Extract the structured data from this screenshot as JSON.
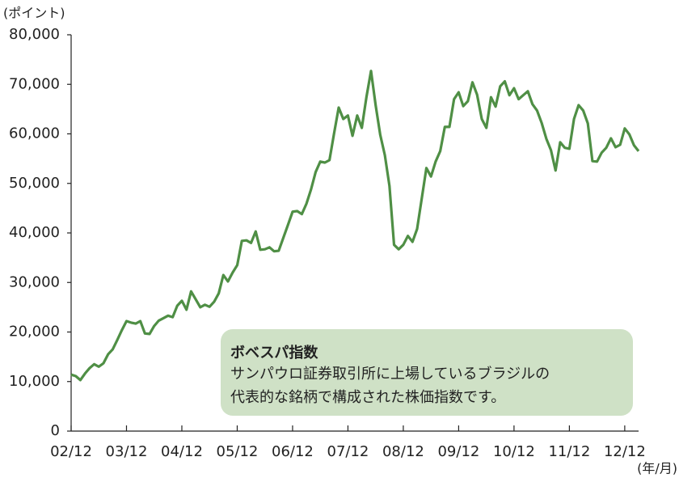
{
  "chart_data": {
    "type": "line",
    "y_unit_label": "(ポイント)",
    "x_unit_label": "(年/月)",
    "annotation": {
      "title": "ボベスパ指数",
      "lines": [
        "サンパウロ証券取引所に上場しているブラジルの",
        "代表的な銘柄で構成された株価指数です。"
      ]
    },
    "x": [
      "2002-12",
      "2003-01",
      "2003-02",
      "2003-03",
      "2003-04",
      "2003-05",
      "2003-06",
      "2003-07",
      "2003-08",
      "2003-09",
      "2003-10",
      "2003-11",
      "2003-12",
      "2004-01",
      "2004-02",
      "2004-03",
      "2004-04",
      "2004-05",
      "2004-06",
      "2004-07",
      "2004-08",
      "2004-09",
      "2004-10",
      "2004-11",
      "2004-12",
      "2005-01",
      "2005-02",
      "2005-03",
      "2005-04",
      "2005-05",
      "2005-06",
      "2005-07",
      "2005-08",
      "2005-09",
      "2005-10",
      "2005-11",
      "2005-12",
      "2006-01",
      "2006-02",
      "2006-03",
      "2006-04",
      "2006-05",
      "2006-06",
      "2006-07",
      "2006-08",
      "2006-09",
      "2006-10",
      "2006-11",
      "2006-12",
      "2007-01",
      "2007-02",
      "2007-03",
      "2007-04",
      "2007-05",
      "2007-06",
      "2007-07",
      "2007-08",
      "2007-09",
      "2007-10",
      "2007-11",
      "2007-12",
      "2008-01",
      "2008-02",
      "2008-03",
      "2008-04",
      "2008-05",
      "2008-06",
      "2008-07",
      "2008-08",
      "2008-09",
      "2008-10",
      "2008-11",
      "2008-12",
      "2009-01",
      "2009-02",
      "2009-03",
      "2009-04",
      "2009-05",
      "2009-06",
      "2009-07",
      "2009-08",
      "2009-09",
      "2009-10",
      "2009-11",
      "2009-12",
      "2010-01",
      "2010-02",
      "2010-03",
      "2010-04",
      "2010-05",
      "2010-06",
      "2010-07",
      "2010-08",
      "2010-09",
      "2010-10",
      "2010-11",
      "2010-12",
      "2011-01",
      "2011-02",
      "2011-03",
      "2011-04",
      "2011-05",
      "2011-06",
      "2011-07",
      "2011-08",
      "2011-09",
      "2011-10",
      "2011-11",
      "2011-12",
      "2012-01",
      "2012-02",
      "2012-03",
      "2012-04",
      "2012-05",
      "2012-06",
      "2012-07",
      "2012-08",
      "2012-09",
      "2012-10",
      "2012-11",
      "2012-12",
      "2013-01",
      "2013-02",
      "2013-03"
    ],
    "series": [
      {
        "name": "ボベスパ指数",
        "color": "#4f8f45",
        "values": [
          11400,
          11100,
          10300,
          11600,
          12700,
          13500,
          13000,
          13700,
          15500,
          16500,
          18400,
          20400,
          22200,
          21900,
          21700,
          22200,
          19700,
          19600,
          21200,
          22300,
          22800,
          23300,
          23000,
          25300,
          26300,
          24500,
          28200,
          26600,
          25000,
          25500,
          25100,
          26100,
          27800,
          31500,
          30200,
          32000,
          33500,
          38400,
          38500,
          38000,
          40300,
          36600,
          36700,
          37100,
          36300,
          36400,
          39000,
          41600,
          44300,
          44400,
          43800,
          45900,
          48800,
          52300,
          54400,
          54200,
          54700,
          60100,
          65300,
          63000,
          63700,
          59600,
          63700,
          61200,
          67400,
          72700,
          65800,
          59800,
          55700,
          49500,
          37600,
          36700,
          37600,
          39400,
          38200,
          40800,
          47000,
          53100,
          51400,
          54400,
          56500,
          61400,
          61400,
          67000,
          68400,
          65600,
          66600,
          70400,
          67900,
          63000,
          61200,
          67400,
          65500,
          69600,
          70600,
          67800,
          69200,
          67000,
          67800,
          68600,
          66000,
          64700,
          62200,
          59000,
          56700,
          52600,
          58300,
          57200,
          57000,
          63000,
          65800,
          64700,
          62100,
          54500,
          54400,
          56200,
          57200,
          59100,
          57300,
          57800,
          61100,
          59900,
          57700,
          56500
        ]
      }
    ],
    "xlim": [
      "2002-12",
      "2013-03"
    ],
    "xticks": [
      {
        "value": "2002-12",
        "label": "02/12"
      },
      {
        "value": "2003-12",
        "label": "03/12"
      },
      {
        "value": "2004-12",
        "label": "04/12"
      },
      {
        "value": "2005-12",
        "label": "05/12"
      },
      {
        "value": "2006-12",
        "label": "06/12"
      },
      {
        "value": "2007-12",
        "label": "07/12"
      },
      {
        "value": "2008-12",
        "label": "08/12"
      },
      {
        "value": "2009-12",
        "label": "09/12"
      },
      {
        "value": "2010-12",
        "label": "10/12"
      },
      {
        "value": "2011-12",
        "label": "11/12"
      },
      {
        "value": "2012-12",
        "label": "12/12"
      }
    ],
    "ylim": [
      0,
      80000
    ],
    "yticks": [
      0,
      {
        "value": 10000,
        "label": "10,000"
      },
      {
        "value": 20000,
        "label": "20,000"
      },
      {
        "value": 30000,
        "label": "30,000"
      },
      {
        "value": 40000,
        "label": "40,000"
      },
      {
        "value": 50000,
        "label": "50,000"
      },
      {
        "value": 60000,
        "label": "60,000"
      },
      {
        "value": 70000,
        "label": "70,000"
      },
      {
        "value": 80000,
        "label": "80,000"
      }
    ]
  }
}
